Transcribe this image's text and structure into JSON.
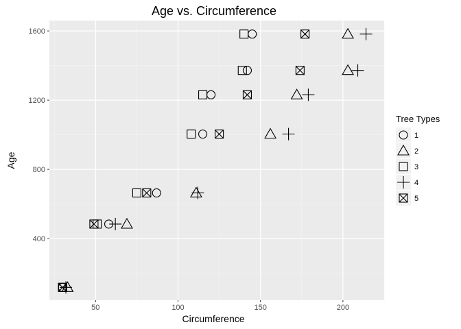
{
  "chart_data": {
    "type": "scatter",
    "title": "Age vs. Circumference",
    "xlabel": "Circumference",
    "ylabel": "Age",
    "xlim": [
      22,
      225
    ],
    "ylim": [
      44,
      1660
    ],
    "xticks": [
      50,
      100,
      150,
      200
    ],
    "yticks": [
      400,
      800,
      1200,
      1600
    ],
    "grid": true,
    "legend": {
      "title": "Tree Types",
      "placement": "right",
      "entries": [
        {
          "label": "1",
          "shape": "circle"
        },
        {
          "label": "2",
          "shape": "triangle"
        },
        {
          "label": "3",
          "shape": "square"
        },
        {
          "label": "4",
          "shape": "plus"
        },
        {
          "label": "5",
          "shape": "square-x"
        }
      ]
    },
    "series": [
      {
        "name": "1",
        "shape": "circle",
        "x": [
          30,
          58,
          87,
          115,
          120,
          142,
          145
        ],
        "y": [
          118,
          484,
          664,
          1004,
          1231,
          1372,
          1582
        ]
      },
      {
        "name": "2",
        "shape": "triangle",
        "x": [
          33,
          69,
          111,
          156,
          172,
          203,
          203
        ],
        "y": [
          118,
          484,
          664,
          1004,
          1231,
          1372,
          1582
        ]
      },
      {
        "name": "3",
        "shape": "square",
        "x": [
          30,
          51,
          75,
          108,
          115,
          139,
          140
        ],
        "y": [
          118,
          484,
          664,
          1004,
          1231,
          1372,
          1582
        ]
      },
      {
        "name": "4",
        "shape": "plus",
        "x": [
          32,
          62,
          112,
          167,
          179,
          209,
          214
        ],
        "y": [
          118,
          484,
          664,
          1004,
          1231,
          1372,
          1582
        ]
      },
      {
        "name": "5",
        "shape": "square-x",
        "x": [
          30,
          49,
          81,
          125,
          142,
          174,
          177
        ],
        "y": [
          118,
          484,
          664,
          1004,
          1231,
          1372,
          1582
        ]
      }
    ]
  }
}
